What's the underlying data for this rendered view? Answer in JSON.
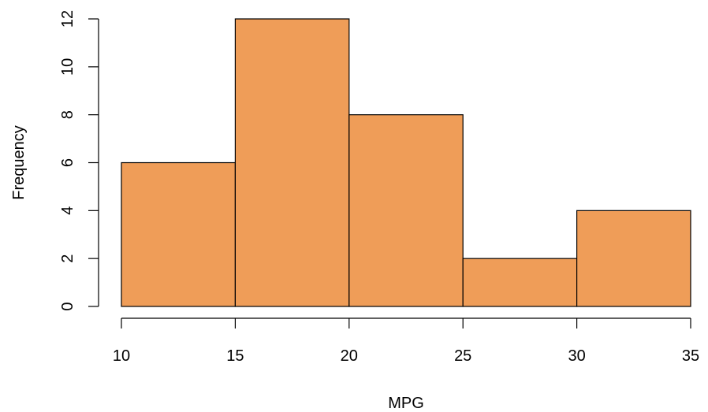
{
  "chart_data": {
    "type": "bar",
    "subtype": "histogram",
    "title": "",
    "xlabel": "MPG",
    "ylabel": "Frequency",
    "bins": [
      {
        "from": 10,
        "to": 15,
        "value": 6
      },
      {
        "from": 15,
        "to": 20,
        "value": 12
      },
      {
        "from": 20,
        "to": 25,
        "value": 8
      },
      {
        "from": 25,
        "to": 30,
        "value": 2
      },
      {
        "from": 30,
        "to": 35,
        "value": 4
      }
    ],
    "xlim": [
      10,
      35
    ],
    "ylim": [
      0,
      12
    ],
    "x_ticks": [
      10,
      15,
      20,
      25,
      30,
      35
    ],
    "y_ticks": [
      0,
      2,
      4,
      6,
      8,
      10,
      12
    ],
    "bar_color": "#EF9D58",
    "grid": false,
    "legend": "none"
  }
}
